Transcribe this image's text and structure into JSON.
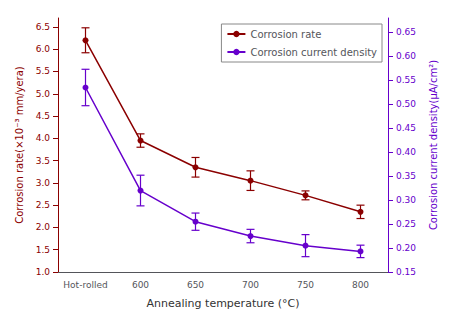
{
  "chart_data": {
    "type": "line",
    "xlabel": "Annealing temperature (°C)",
    "ylabel": "Corrosion rate(×10⁻³ mm/yera)",
    "y2label": "Corrosion current density(μA/cm²)",
    "categories": [
      "Hot-rolled",
      "600",
      "650",
      "700",
      "750",
      "800"
    ],
    "series": [
      {
        "name": "Corrosion rate",
        "color": "#8B0000",
        "marker": "circle",
        "axis": "y",
        "values": [
          6.2,
          3.95,
          3.35,
          3.05,
          2.72,
          2.35
        ],
        "errors": [
          0.28,
          0.15,
          0.22,
          0.22,
          0.1,
          0.15
        ]
      },
      {
        "name": "Corrosion current density",
        "color": "#6600CC",
        "marker": "circle",
        "axis": "y2",
        "values": [
          0.535,
          0.32,
          0.255,
          0.225,
          0.205,
          0.193
        ],
        "errors": [
          0.038,
          0.032,
          0.018,
          0.014,
          0.023,
          0.013
        ]
      }
    ],
    "ylim": [
      1.0,
      6.7
    ],
    "yticks": [
      {
        "value": 1,
        "label": "1.0"
      },
      1.5,
      {
        "value": 2,
        "label": "2.0"
      },
      2.5,
      {
        "value": 3,
        "label": "3.0"
      },
      3.5,
      {
        "value": 4,
        "label": "4.0"
      },
      4.5,
      {
        "value": 5,
        "label": "5.0"
      },
      5.5,
      {
        "value": 6,
        "label": "6.0"
      },
      6.5
    ],
    "y2lim": [
      0.15,
      0.68
    ],
    "y2ticks": [
      0.15,
      {
        "value": 0.2,
        "label": "0.20"
      },
      0.25,
      {
        "value": 0.3,
        "label": "0.30"
      },
      0.35,
      {
        "value": 0.4,
        "label": "0.40"
      },
      0.45,
      {
        "value": 0.5,
        "label": "0.50"
      },
      0.55,
      {
        "value": 0.6,
        "label": "0.60"
      },
      0.65
    ],
    "legend": "upper right",
    "grid": false
  }
}
